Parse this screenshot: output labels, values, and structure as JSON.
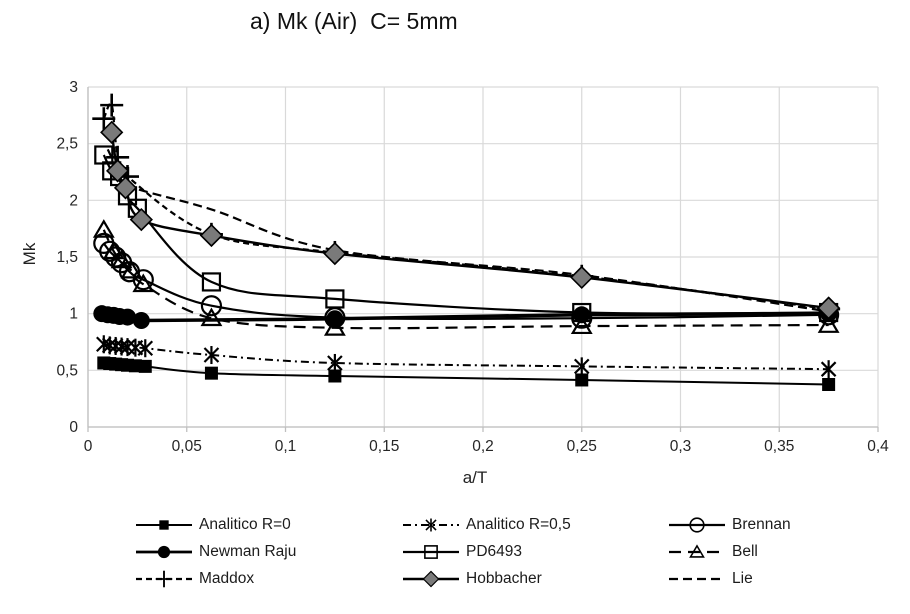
{
  "chart_data": {
    "type": "line",
    "title": "a) Mk (Air)  C= 5mm",
    "xlabel": "a/T",
    "ylabel": "Mk",
    "xlim": [
      0,
      0.4
    ],
    "ylim": [
      0,
      3
    ],
    "grid": true,
    "legend_position": "bottom",
    "x_tick_values": [
      0,
      0.05,
      0.1,
      0.15,
      0.2,
      0.25,
      0.3,
      0.35,
      0.4
    ],
    "x_tick_labels": [
      "0",
      "0,05",
      "0,1",
      "0,15",
      "0,2",
      "0,25",
      "0,3",
      "0,35",
      "0,4"
    ],
    "y_tick_values": [
      0,
      0.5,
      1,
      1.5,
      2,
      2.5,
      3
    ],
    "y_tick_labels": [
      "0",
      "0,5",
      "1",
      "1,5",
      "2",
      "2,5",
      "3"
    ],
    "colors": {
      "series_black": "#000000",
      "diamond_fill": "#7a7a7a",
      "gridline": "#d9d9d9",
      "axis_line": "#bfbfbf",
      "tick_text": "#262626"
    },
    "series": [
      {
        "name": "Analitico R=0",
        "marker": "filled-square",
        "line": "solid",
        "width": 2,
        "z": 1,
        "color": "#000000",
        "points": [
          [
            0.008,
            0.565
          ],
          [
            0.011,
            0.56
          ],
          [
            0.014,
            0.555
          ],
          [
            0.017,
            0.55
          ],
          [
            0.02,
            0.545
          ],
          [
            0.024,
            0.54
          ],
          [
            0.029,
            0.535
          ],
          [
            0.0625,
            0.475
          ],
          [
            0.125,
            0.45
          ],
          [
            0.25,
            0.415
          ],
          [
            0.375,
            0.375
          ]
        ]
      },
      {
        "name": "Analitico R=0,5",
        "marker": "star",
        "line": "dash-dot",
        "width": 2,
        "z": 2,
        "color": "#000000",
        "points": [
          [
            0.008,
            0.73
          ],
          [
            0.011,
            0.72
          ],
          [
            0.014,
            0.715
          ],
          [
            0.017,
            0.71
          ],
          [
            0.02,
            0.705
          ],
          [
            0.024,
            0.7
          ],
          [
            0.029,
            0.695
          ],
          [
            0.0625,
            0.635
          ],
          [
            0.125,
            0.565
          ],
          [
            0.25,
            0.535
          ],
          [
            0.375,
            0.51
          ]
        ]
      },
      {
        "name": "Brennan",
        "marker": "open-circle",
        "line": "solid",
        "width": 2.2,
        "z": 5,
        "color": "#000000",
        "points": [
          [
            0.008,
            1.62
          ],
          [
            0.011,
            1.55
          ],
          [
            0.014,
            1.5
          ],
          [
            0.017,
            1.45
          ],
          [
            0.021,
            1.37
          ],
          [
            0.028,
            1.3
          ],
          [
            0.0625,
            1.07
          ],
          [
            0.125,
            0.965
          ],
          [
            0.25,
            0.96
          ],
          [
            0.375,
            0.99
          ]
        ]
      },
      {
        "name": "Newman Raju",
        "marker": "filled-circle",
        "line": "solid",
        "width": 3.5,
        "z": 4,
        "color": "#000000",
        "points": [
          [
            0.007,
            1.0
          ],
          [
            0.01,
            0.99
          ],
          [
            0.013,
            0.985
          ],
          [
            0.016,
            0.975
          ],
          [
            0.02,
            0.97
          ],
          [
            0.027,
            0.94
          ],
          [
            0.125,
            0.955
          ],
          [
            0.25,
            0.99
          ],
          [
            0.375,
            1.0
          ]
        ]
      },
      {
        "name": "PD6493",
        "marker": "open-square",
        "line": "solid",
        "width": 2.2,
        "z": 6,
        "color": "#000000",
        "points": [
          [
            0.008,
            2.4
          ],
          [
            0.012,
            2.26
          ],
          [
            0.016,
            2.21
          ],
          [
            0.02,
            2.04
          ],
          [
            0.025,
            1.93
          ],
          [
            0.0625,
            1.28
          ],
          [
            0.125,
            1.13
          ],
          [
            0.25,
            1.01
          ],
          [
            0.375,
            1.01
          ]
        ]
      },
      {
        "name": "Bell",
        "marker": "open-triangle",
        "line": "long-dash",
        "width": 2.2,
        "z": 3,
        "color": "#000000",
        "points": [
          [
            0.008,
            1.74
          ],
          [
            0.013,
            1.55
          ],
          [
            0.017,
            1.47
          ],
          [
            0.022,
            1.38
          ],
          [
            0.028,
            1.26
          ],
          [
            0.0625,
            0.96
          ],
          [
            0.125,
            0.875
          ],
          [
            0.25,
            0.89
          ],
          [
            0.375,
            0.9
          ]
        ]
      },
      {
        "name": "Maddox",
        "marker": "plus",
        "line": "dash",
        "width": 2.2,
        "z": 7,
        "color": "#000000",
        "points": [
          [
            0.008,
            2.72
          ],
          [
            0.012,
            2.84
          ],
          [
            0.015,
            2.38
          ],
          [
            0.02,
            2.21
          ],
          [
            0.0625,
            1.7
          ],
          [
            0.125,
            1.54
          ],
          [
            0.25,
            1.33
          ],
          [
            0.375,
            1.04
          ]
        ]
      },
      {
        "name": "Hobbacher",
        "marker": "filled-diamond",
        "line": "solid",
        "width": 2.4,
        "z": 9,
        "color": "#000000",
        "marker_fill": "#7a7a7a",
        "points": [
          [
            0.012,
            2.6
          ],
          [
            0.015,
            2.26
          ],
          [
            0.019,
            2.11
          ],
          [
            0.027,
            1.83
          ],
          [
            0.0625,
            1.69
          ],
          [
            0.125,
            1.53
          ],
          [
            0.25,
            1.32
          ],
          [
            0.375,
            1.05
          ]
        ]
      },
      {
        "name": "Lie",
        "marker": "none",
        "line": "dash-coarse",
        "width": 2.2,
        "z": 8,
        "color": "#000000",
        "points": [
          [
            0.01,
            2.45
          ],
          [
            0.015,
            2.27
          ],
          [
            0.02,
            2.13
          ],
          [
            0.0625,
            1.92
          ],
          [
            0.125,
            1.56
          ],
          [
            0.25,
            1.34
          ],
          [
            0.375,
            1.02
          ]
        ]
      }
    ]
  }
}
